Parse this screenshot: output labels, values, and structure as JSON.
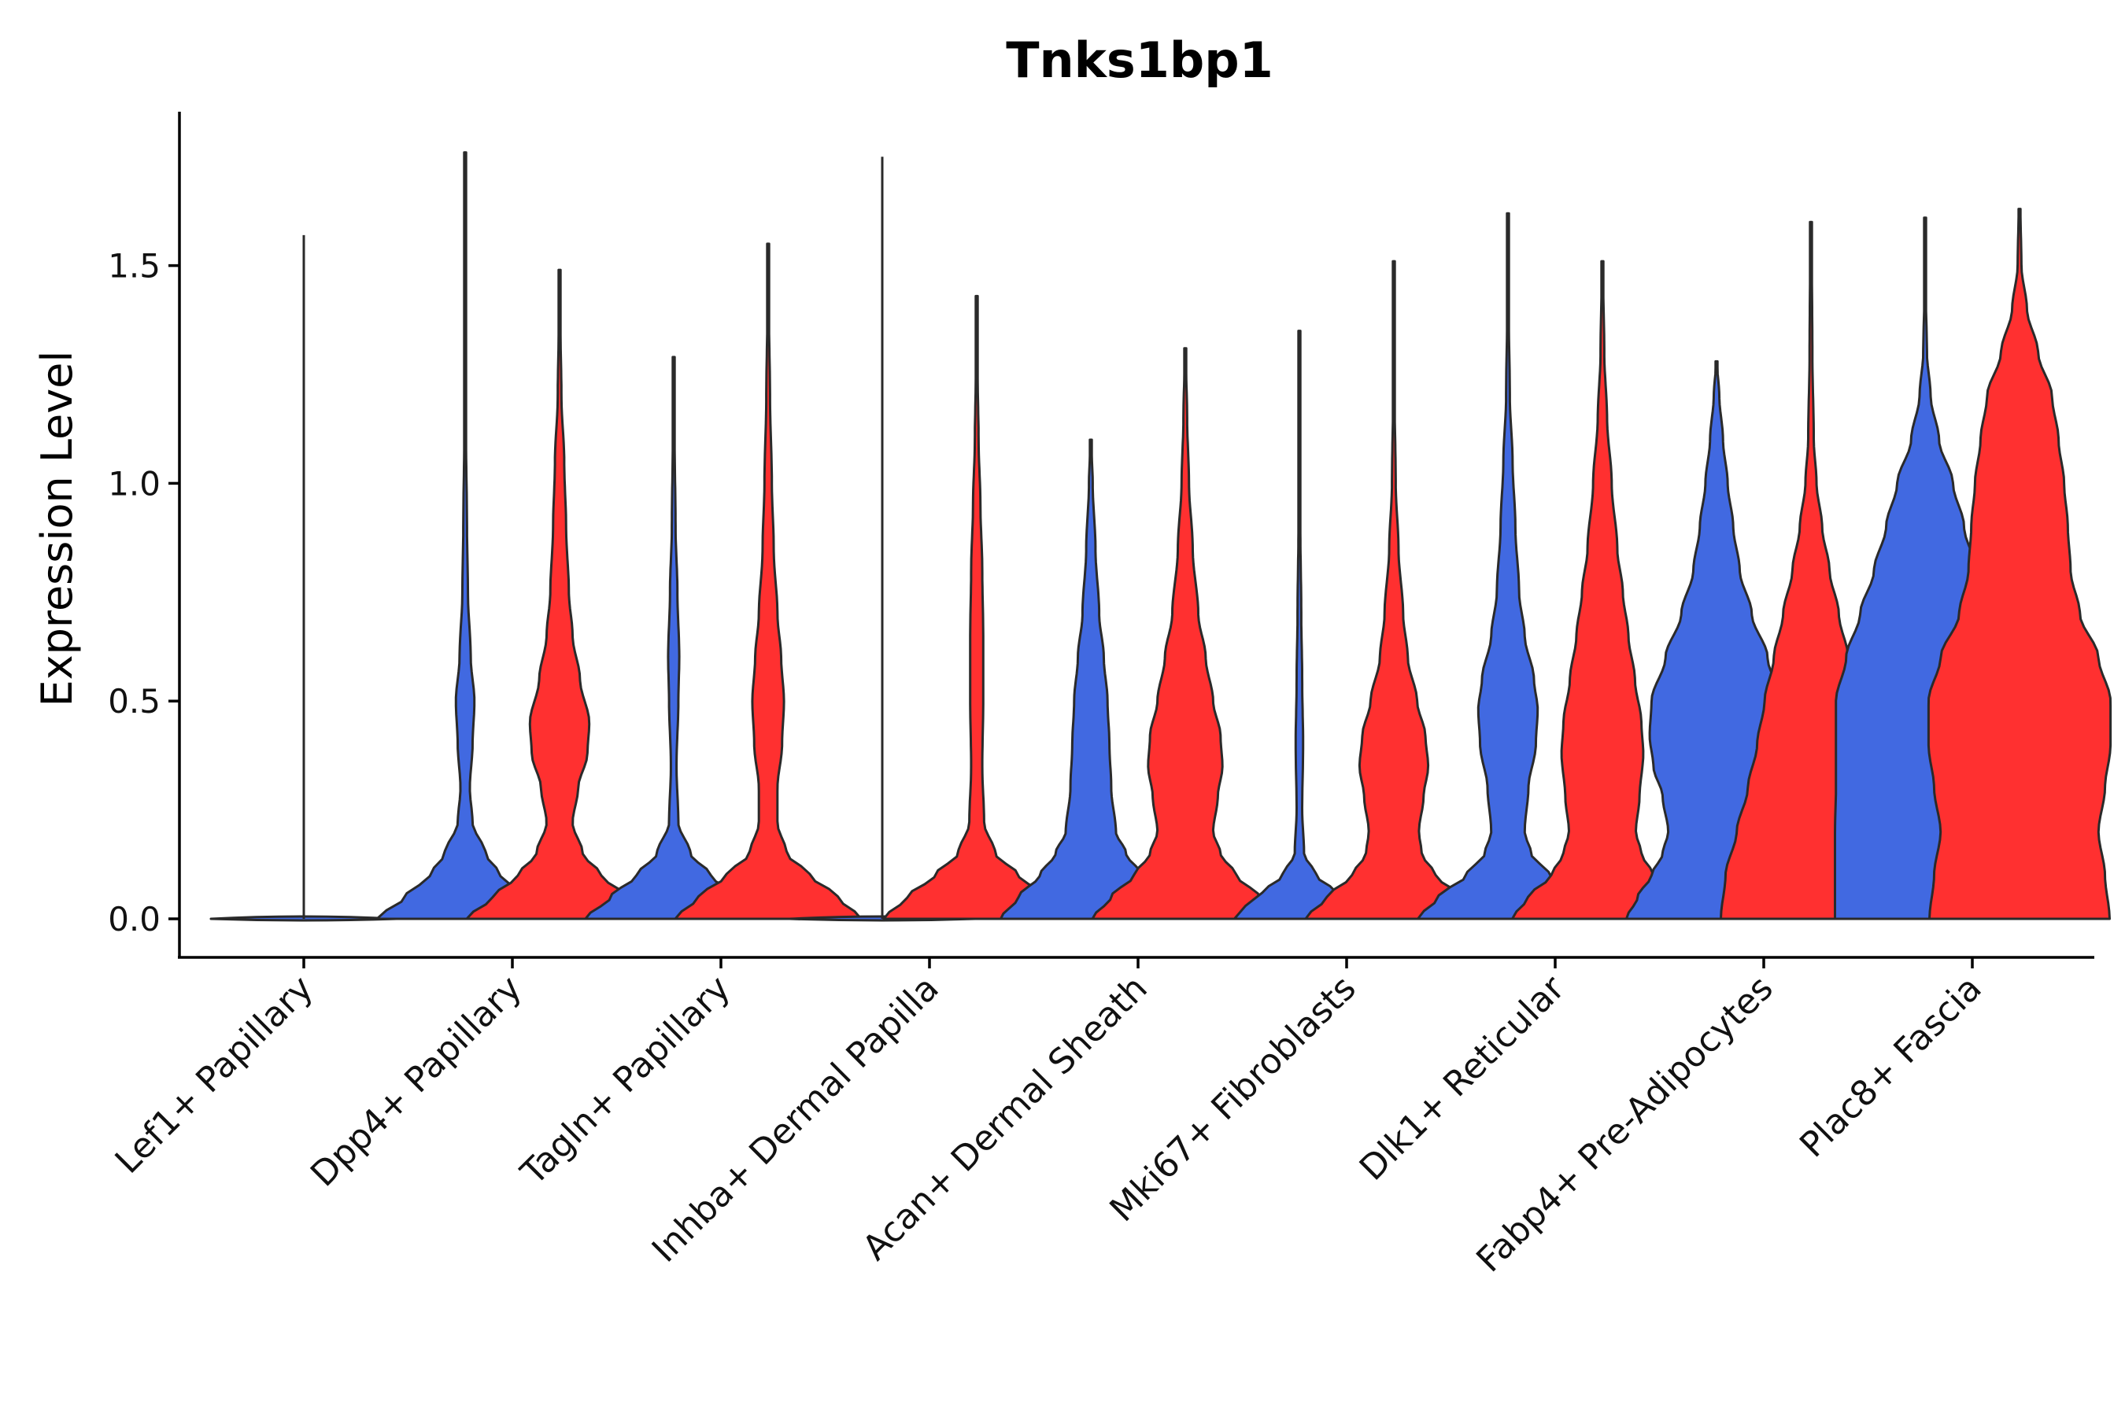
{
  "chart_data": {
    "type": "violin",
    "title": "Tnks1bp1",
    "xlabel": "",
    "ylabel": "Expression Level",
    "ylim": [
      -0.09,
      1.86
    ],
    "yticks": [
      0.0,
      0.5,
      1.0,
      1.5
    ],
    "ytick_labels": [
      "0.0",
      "0.5",
      "1.0",
      "1.5"
    ],
    "grid": false,
    "legend": "none",
    "colors": {
      "blue": "#4169E1",
      "red": "#FF3030"
    },
    "categories": [
      "Lef1+ Papillary",
      "Dpp4+ Papillary",
      "Tagln+ Papillary",
      "Inhba+ Dermal Papilla",
      "Acan+ Dermal Sheath",
      "Mki67+ Fibroblasts",
      "Dlk1+ Reticular",
      "Fabp4+ Pre-Adipocytes",
      "Plac8+ Fascia"
    ],
    "violins": [
      {
        "category": "Lef1+ Papillary",
        "color": "blue",
        "max": 1.57,
        "flat": true
      },
      {
        "category": "Dpp4+ Papillary",
        "color": "blue",
        "max": 1.76,
        "profile": [
          [
            0,
            0.95
          ],
          [
            0.05,
            0.65
          ],
          [
            0.1,
            0.38
          ],
          [
            0.15,
            0.22
          ],
          [
            0.22,
            0.08
          ],
          [
            0.3,
            0.05
          ],
          [
            0.4,
            0.08
          ],
          [
            0.5,
            0.1
          ],
          [
            0.6,
            0.06
          ],
          [
            0.75,
            0.03
          ],
          [
            0.9,
            0.02
          ],
          [
            1.1,
            0.01
          ],
          [
            1.3,
            0.006
          ],
          [
            1.76,
            0.003
          ]
        ]
      },
      {
        "category": "Dpp4+ Papillary",
        "color": "red",
        "max": 1.49,
        "profile": [
          [
            0,
            1.0
          ],
          [
            0.05,
            0.72
          ],
          [
            0.1,
            0.45
          ],
          [
            0.15,
            0.25
          ],
          [
            0.22,
            0.14
          ],
          [
            0.3,
            0.2
          ],
          [
            0.38,
            0.3
          ],
          [
            0.45,
            0.32
          ],
          [
            0.55,
            0.22
          ],
          [
            0.65,
            0.14
          ],
          [
            0.75,
            0.1
          ],
          [
            0.9,
            0.07
          ],
          [
            1.05,
            0.05
          ],
          [
            1.2,
            0.02
          ],
          [
            1.35,
            0.01
          ],
          [
            1.49,
            0.004
          ]
        ]
      },
      {
        "category": "Tagln+ Papillary",
        "color": "blue",
        "max": 1.29,
        "profile": [
          [
            0,
            0.95
          ],
          [
            0.05,
            0.68
          ],
          [
            0.1,
            0.4
          ],
          [
            0.15,
            0.18
          ],
          [
            0.22,
            0.05
          ],
          [
            0.35,
            0.03
          ],
          [
            0.5,
            0.05
          ],
          [
            0.6,
            0.06
          ],
          [
            0.75,
            0.04
          ],
          [
            0.9,
            0.02
          ],
          [
            1.1,
            0.01
          ],
          [
            1.29,
            0.004
          ]
        ]
      },
      {
        "category": "Tagln+ Papillary",
        "color": "red",
        "max": 1.55,
        "profile": [
          [
            0,
            1.0
          ],
          [
            0.05,
            0.75
          ],
          [
            0.1,
            0.45
          ],
          [
            0.15,
            0.2
          ],
          [
            0.22,
            0.1
          ],
          [
            0.3,
            0.1
          ],
          [
            0.4,
            0.15
          ],
          [
            0.5,
            0.17
          ],
          [
            0.6,
            0.14
          ],
          [
            0.7,
            0.1
          ],
          [
            0.85,
            0.06
          ],
          [
            1.0,
            0.04
          ],
          [
            1.2,
            0.02
          ],
          [
            1.4,
            0.008
          ],
          [
            1.55,
            0.003
          ]
        ]
      },
      {
        "category": "Inhba+ Dermal Papilla",
        "color": "blue",
        "max": 1.75,
        "flat": true
      },
      {
        "category": "Inhba+ Dermal Papilla",
        "color": "red",
        "max": 1.43,
        "profile": [
          [
            0,
            1.0
          ],
          [
            0.05,
            0.75
          ],
          [
            0.1,
            0.45
          ],
          [
            0.15,
            0.2
          ],
          [
            0.22,
            0.08
          ],
          [
            0.35,
            0.06
          ],
          [
            0.5,
            0.07
          ],
          [
            0.65,
            0.07
          ],
          [
            0.8,
            0.06
          ],
          [
            0.95,
            0.04
          ],
          [
            1.1,
            0.02
          ],
          [
            1.25,
            0.01
          ],
          [
            1.43,
            0.003
          ]
        ]
      },
      {
        "category": "Acan+ Dermal Sheath",
        "color": "blue",
        "max": 1.1,
        "profile": [
          [
            0,
            0.97
          ],
          [
            0.05,
            0.78
          ],
          [
            0.1,
            0.55
          ],
          [
            0.15,
            0.38
          ],
          [
            0.2,
            0.27
          ],
          [
            0.3,
            0.22
          ],
          [
            0.4,
            0.2
          ],
          [
            0.5,
            0.18
          ],
          [
            0.6,
            0.14
          ],
          [
            0.7,
            0.09
          ],
          [
            0.85,
            0.05
          ],
          [
            1.0,
            0.02
          ],
          [
            1.1,
            0.004
          ]
        ]
      },
      {
        "category": "Acan+ Dermal Sheath",
        "color": "red",
        "max": 1.31,
        "profile": [
          [
            0,
            1.0
          ],
          [
            0.05,
            0.8
          ],
          [
            0.1,
            0.55
          ],
          [
            0.15,
            0.38
          ],
          [
            0.2,
            0.3
          ],
          [
            0.28,
            0.35
          ],
          [
            0.35,
            0.4
          ],
          [
            0.42,
            0.38
          ],
          [
            0.5,
            0.3
          ],
          [
            0.6,
            0.22
          ],
          [
            0.7,
            0.14
          ],
          [
            0.85,
            0.08
          ],
          [
            1.0,
            0.04
          ],
          [
            1.15,
            0.02
          ],
          [
            1.31,
            0.004
          ]
        ]
      },
      {
        "category": "Mki67+ Fibroblasts",
        "color": "blue",
        "max": 1.35,
        "profile": [
          [
            0,
            0.7
          ],
          [
            0.03,
            0.58
          ],
          [
            0.06,
            0.4
          ],
          [
            0.1,
            0.18
          ],
          [
            0.15,
            0.05
          ],
          [
            0.25,
            0.03
          ],
          [
            0.4,
            0.04
          ],
          [
            0.55,
            0.03
          ],
          [
            0.7,
            0.02
          ],
          [
            0.9,
            0.01
          ],
          [
            1.1,
            0.006
          ],
          [
            1.35,
            0.003
          ]
        ]
      },
      {
        "category": "Mki67+ Fibroblasts",
        "color": "red",
        "max": 1.51,
        "profile": [
          [
            0,
            0.95
          ],
          [
            0.05,
            0.72
          ],
          [
            0.1,
            0.45
          ],
          [
            0.15,
            0.3
          ],
          [
            0.2,
            0.27
          ],
          [
            0.28,
            0.32
          ],
          [
            0.35,
            0.37
          ],
          [
            0.42,
            0.34
          ],
          [
            0.5,
            0.25
          ],
          [
            0.6,
            0.15
          ],
          [
            0.7,
            0.1
          ],
          [
            0.85,
            0.05
          ],
          [
            1.0,
            0.02
          ],
          [
            1.2,
            0.008
          ],
          [
            1.51,
            0.003
          ]
        ]
      },
      {
        "category": "Dlk1+ Reticular",
        "color": "blue",
        "max": 1.62,
        "profile": [
          [
            0,
            0.97
          ],
          [
            0.05,
            0.75
          ],
          [
            0.1,
            0.45
          ],
          [
            0.15,
            0.25
          ],
          [
            0.2,
            0.18
          ],
          [
            0.3,
            0.22
          ],
          [
            0.4,
            0.3
          ],
          [
            0.48,
            0.32
          ],
          [
            0.55,
            0.28
          ],
          [
            0.65,
            0.18
          ],
          [
            0.75,
            0.12
          ],
          [
            0.9,
            0.08
          ],
          [
            1.05,
            0.05
          ],
          [
            1.2,
            0.02
          ],
          [
            1.4,
            0.008
          ],
          [
            1.62,
            0.003
          ]
        ]
      },
      {
        "category": "Dlk1+ Reticular",
        "color": "red",
        "max": 1.51,
        "profile": [
          [
            0,
            0.97
          ],
          [
            0.05,
            0.8
          ],
          [
            0.1,
            0.55
          ],
          [
            0.15,
            0.42
          ],
          [
            0.2,
            0.36
          ],
          [
            0.28,
            0.4
          ],
          [
            0.38,
            0.44
          ],
          [
            0.45,
            0.42
          ],
          [
            0.55,
            0.35
          ],
          [
            0.65,
            0.28
          ],
          [
            0.75,
            0.22
          ],
          [
            0.85,
            0.16
          ],
          [
            1.0,
            0.1
          ],
          [
            1.15,
            0.05
          ],
          [
            1.3,
            0.02
          ],
          [
            1.51,
            0.004
          ]
        ]
      },
      {
        "category": "Fabp4+ Pre-Adipocytes",
        "color": "blue",
        "max": 1.28,
        "profile": [
          [
            0,
            0.97
          ],
          [
            0.05,
            0.85
          ],
          [
            0.1,
            0.7
          ],
          [
            0.15,
            0.58
          ],
          [
            0.2,
            0.52
          ],
          [
            0.28,
            0.58
          ],
          [
            0.35,
            0.68
          ],
          [
            0.42,
            0.72
          ],
          [
            0.5,
            0.7
          ],
          [
            0.6,
            0.55
          ],
          [
            0.7,
            0.38
          ],
          [
            0.8,
            0.25
          ],
          [
            0.9,
            0.18
          ],
          [
            1.0,
            0.12
          ],
          [
            1.1,
            0.07
          ],
          [
            1.2,
            0.03
          ],
          [
            1.28,
            0.004
          ]
        ]
      },
      {
        "category": "Fabp4+ Pre-Adipocytes",
        "color": "red",
        "max": 1.6,
        "profile": [
          [
            0,
            0.97
          ],
          [
            0.1,
            0.92
          ],
          [
            0.2,
            0.8
          ],
          [
            0.3,
            0.68
          ],
          [
            0.4,
            0.58
          ],
          [
            0.5,
            0.5
          ],
          [
            0.6,
            0.4
          ],
          [
            0.7,
            0.3
          ],
          [
            0.8,
            0.2
          ],
          [
            0.9,
            0.12
          ],
          [
            1.0,
            0.06
          ],
          [
            1.1,
            0.03
          ],
          [
            1.3,
            0.015
          ],
          [
            1.5,
            0.01
          ],
          [
            1.6,
            0.01
          ]
        ]
      },
      {
        "category": "Plac8+ Fascia",
        "color": "blue",
        "max": 1.61,
        "profile": [
          [
            0,
            0.97
          ],
          [
            0.1,
            0.97
          ],
          [
            0.2,
            0.97
          ],
          [
            0.3,
            0.96
          ],
          [
            0.4,
            0.96
          ],
          [
            0.5,
            0.96
          ],
          [
            0.6,
            0.85
          ],
          [
            0.7,
            0.7
          ],
          [
            0.8,
            0.55
          ],
          [
            0.9,
            0.42
          ],
          [
            1.0,
            0.3
          ],
          [
            1.1,
            0.15
          ],
          [
            1.2,
            0.06
          ],
          [
            1.3,
            0.02
          ],
          [
            1.45,
            0.006
          ],
          [
            1.61,
            0.003
          ]
        ]
      },
      {
        "category": "Plac8+ Fascia",
        "color": "red",
        "max": 1.63,
        "profile": [
          [
            0,
            0.97
          ],
          [
            0.1,
            0.92
          ],
          [
            0.2,
            0.85
          ],
          [
            0.3,
            0.92
          ],
          [
            0.4,
            0.98
          ],
          [
            0.5,
            0.98
          ],
          [
            0.6,
            0.85
          ],
          [
            0.7,
            0.65
          ],
          [
            0.8,
            0.55
          ],
          [
            0.9,
            0.52
          ],
          [
            1.0,
            0.48
          ],
          [
            1.1,
            0.42
          ],
          [
            1.2,
            0.35
          ],
          [
            1.3,
            0.2
          ],
          [
            1.4,
            0.08
          ],
          [
            1.5,
            0.02
          ],
          [
            1.63,
            0.01
          ]
        ]
      }
    ]
  }
}
